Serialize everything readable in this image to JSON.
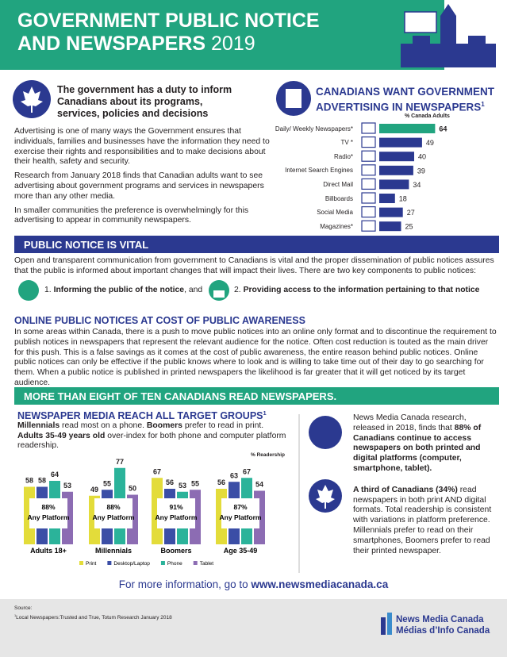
{
  "header": {
    "title_lines": [
      "GOVERNMENT PUBLIC NOTICE",
      "AND NEWSPAPERS"
    ],
    "year": "2019"
  },
  "intro": {
    "heading": "The government has a duty to inform Canadians about its programs, services, policies and decisions",
    "paragraphs": [
      "Advertising is one of many ways the Government ensures that individuals, families and businesses have the information they need to exercise their rights and responsibilities and to make decisions about their health, safety and security.",
      "Research from January 2018 finds that Canadian adults want to see advertising about government programs and services in newspapers more than any other media.",
      "In smaller communities the preference is overwhelmingly for this advertising to appear in community newspapers."
    ]
  },
  "chart_data": [
    {
      "type": "bar",
      "orientation": "horizontal",
      "title": "CANADIANS WANT GOVERNMENT ADVERTISING IN NEWSPAPERS",
      "title_note": "1",
      "value_axis_label": "% Canada Adults",
      "categories": [
        "Daily/ Weekly Newspapers*",
        "TV *",
        "Radio*",
        "Internet Search Engines",
        "Direct Mail",
        "Billboards",
        "Social Media",
        "Magazines*"
      ],
      "values": [
        64,
        49,
        40,
        39,
        34,
        18,
        27,
        25
      ],
      "colors": [
        "#21a47f",
        "#2b3990",
        "#2b3990",
        "#2b3990",
        "#2b3990",
        "#2b3990",
        "#2b3990",
        "#2b3990"
      ]
    },
    {
      "type": "bar",
      "orientation": "vertical",
      "title": "NEWSPAPER MEDIA REACH ALL TARGET GROUPS",
      "title_note": "1",
      "y_label": "% Readership",
      "categories": [
        "Adults 18+",
        "Millennials",
        "Boomers",
        "Age 35-49"
      ],
      "series": [
        {
          "name": "Print",
          "color": "#e3dc3a",
          "values": [
            58,
            49,
            67,
            56
          ]
        },
        {
          "name": "Desktop/Laptop",
          "color": "#3b4ea6",
          "values": [
            58,
            55,
            56,
            63
          ]
        },
        {
          "name": "Phone",
          "color": "#2bb39a",
          "values": [
            64,
            77,
            53,
            67
          ]
        },
        {
          "name": "Tablet",
          "color": "#8c6cb3",
          "values": [
            53,
            50,
            55,
            54
          ]
        }
      ],
      "annotations": [
        "88%",
        "88%",
        "91%",
        "87%"
      ],
      "annotation_label": "Any Platform"
    }
  ],
  "section_vital": {
    "heading": "PUBLIC NOTICE IS VITAL",
    "text": "Open and transparent communication from government to Canadians is vital and the proper dissemination of public notices assures that the public is informed about important changes that will impact their lives.  There are two key components to public notices:",
    "items": [
      [
        {
          "text": "1. ",
          "bold": false
        },
        {
          "text": "Informing the public of the notice",
          "bold": true
        },
        {
          "text": ", and",
          "bold": false
        }
      ],
      [
        {
          "text": "2. ",
          "bold": false
        },
        {
          "text": "Providing access to the information pertaining to that notice",
          "bold": true
        }
      ]
    ]
  },
  "section_online": {
    "heading": "ONLINE PUBLIC NOTICES AT COST OF PUBLIC AWARENESS",
    "text": "In some areas within Canada, there is a push to move public notices into an online only format and to discontinue the requirement to publish notices in newspapers that represent the relevant audience for the notice. Often cost reduction is touted as the main driver for this push. This is a false savings as it comes at the cost of public awareness, the entire reason behind public notices. Online public notices can only be effective if the public knows where to look and is willing to take time out of their day to go searching for them. When a public notice is published in printed newspapers the likelihood is far greater that it will get noticed by its target audience."
  },
  "section_readers": {
    "banner": "MORE THAN EIGHT OF TEN CANADIANS READ NEWSPAPERS.",
    "chart_intro": [
      [
        {
          "text": "Millennials",
          "bold": true
        },
        {
          "text": " read most on a phone. ",
          "bold": false
        },
        {
          "text": "Boomers",
          "bold": true
        },
        {
          "text": " prefer to read in print.",
          "bold": false
        }
      ],
      [
        {
          "text": "Adults 35-49 years old",
          "bold": true
        },
        {
          "text": " over-index for both phone and computer platform readership.",
          "bold": false
        }
      ]
    ],
    "side_paragraphs": [
      [
        {
          "text": "News Media Canada research, released in 2018, finds that ",
          "bold": false
        },
        {
          "text": "88% of Canadians continue to access newspapers on both printed and digital platforms (computer, smartphone, tablet).",
          "bold": true
        }
      ],
      [
        {
          "text": "A third of Canadians (34%)",
          "bold": true
        },
        {
          "text": " read newspapers in both print AND digital formats. Total readership is consistent with variations in platform preference. Millennials prefer to read on their smartphones, Boomers prefer to read their printed newspaper.",
          "bold": false
        }
      ]
    ]
  },
  "footer": {
    "cta": "For more information, go to ",
    "link": "www.newsmediacanada.ca",
    "source_label": "Source:",
    "source_note": "1",
    "source": "Local Newspapers:Trusted and True, Totum Research January 2018",
    "logo_lines": [
      "News Media Canada",
      "Médias d’Info Canada"
    ]
  }
}
